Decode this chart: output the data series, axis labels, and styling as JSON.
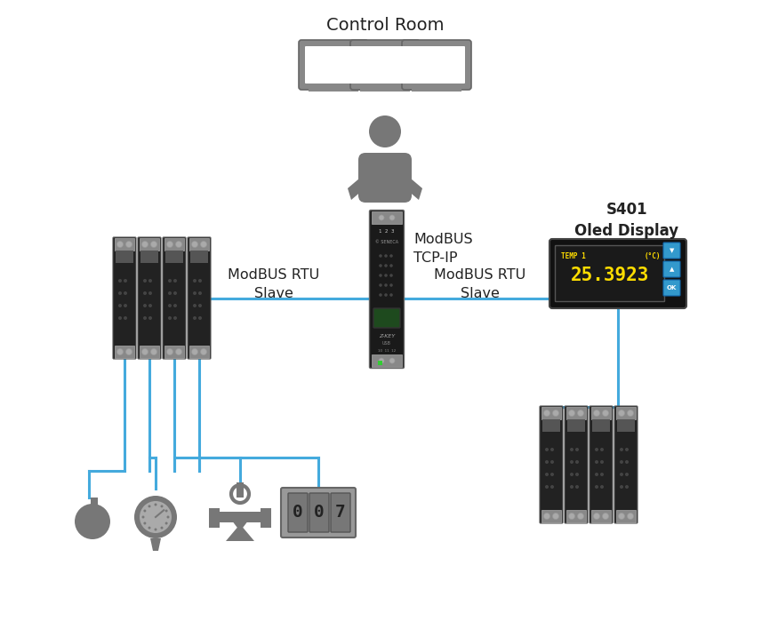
{
  "bg_color": "#ffffff",
  "control_room_label": "Control Room",
  "modbus_tcpip_label": "ModBUS\nTCP-IP",
  "modbus_rtu_left_label": "ModBUS RTU\nSlave",
  "modbus_rtu_right_label": "ModBUS RTU\nSlave",
  "s401_label": "S401\nOled Display",
  "display_temp_label": "TEMP 1",
  "display_unit_label": "(°C)",
  "display_value": "25.3923",
  "line_color_blue": "#44aadd",
  "line_color_green": "#55bb22",
  "display_bg": "#1a1a1a",
  "display_text_color": "#ffdd00",
  "display_button_color": "#3399cc",
  "icon_color": "#777777",
  "module_color": "#222222",
  "module_edge": "#555555",
  "connector_color": "#888888"
}
